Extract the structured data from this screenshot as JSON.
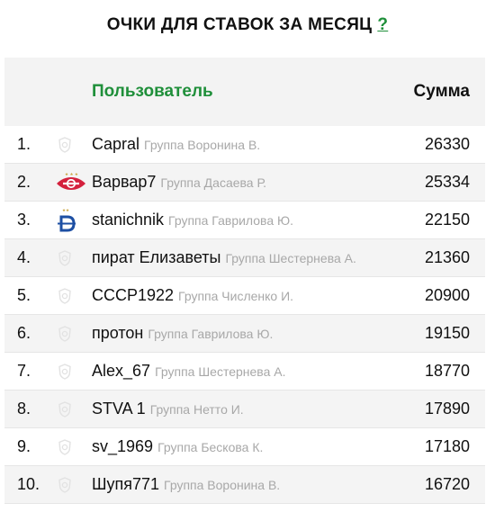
{
  "title": {
    "text": "ОЧКИ ДЛЯ СТАВОК ЗА МЕСЯЦ",
    "help": "?"
  },
  "table": {
    "columns": {
      "user": "Пользователь",
      "sum": "Сумма"
    },
    "rows": [
      {
        "rank": "1.",
        "name": "Capral",
        "group": "Группа Воронина В.",
        "sum": "26330",
        "logo": "placeholder-badge-icon"
      },
      {
        "rank": "2.",
        "name": "Варвар7",
        "group": "Группа Дасаева Р.",
        "sum": "25334",
        "logo": "spartak-logo-icon"
      },
      {
        "rank": "3.",
        "name": "stanichnik",
        "group": "Группа Гаврилова Ю.",
        "sum": "22150",
        "logo": "dynamo-logo-icon"
      },
      {
        "rank": "4.",
        "name": "пират Елизаветы",
        "group": "Группа Шестернева А.",
        "sum": "21360",
        "logo": "placeholder-badge-icon"
      },
      {
        "rank": "5.",
        "name": "СССР1922",
        "group": "Группа Численко И.",
        "sum": "20900",
        "logo": "placeholder-badge-icon"
      },
      {
        "rank": "6.",
        "name": "протон",
        "group": "Группа Гаврилова Ю.",
        "sum": "19150",
        "logo": "placeholder-badge-icon"
      },
      {
        "rank": "7.",
        "name": "Alex_67",
        "group": "Группа Шестернева А.",
        "sum": "18770",
        "logo": "placeholder-badge-icon"
      },
      {
        "rank": "8.",
        "name": "STVA 1",
        "group": "Группа Нетто И.",
        "sum": "17890",
        "logo": "placeholder-badge-icon"
      },
      {
        "rank": "9.",
        "name": "sv_1969",
        "group": "Группа Бескова К.",
        "sum": "17180",
        "logo": "placeholder-badge-icon"
      },
      {
        "rank": "10.",
        "name": "Шупя771",
        "group": "Группа Воронина В.",
        "sum": "16720",
        "logo": "placeholder-badge-icon"
      }
    ]
  },
  "colors": {
    "accent": "#1f8f3a",
    "header_bg": "#f3f3f3",
    "alt_row_bg": "#f4f4f4",
    "muted_text": "#a8a8a8",
    "spartak_red": "#d4213d",
    "dynamo_blue": "#1d4fa3"
  }
}
